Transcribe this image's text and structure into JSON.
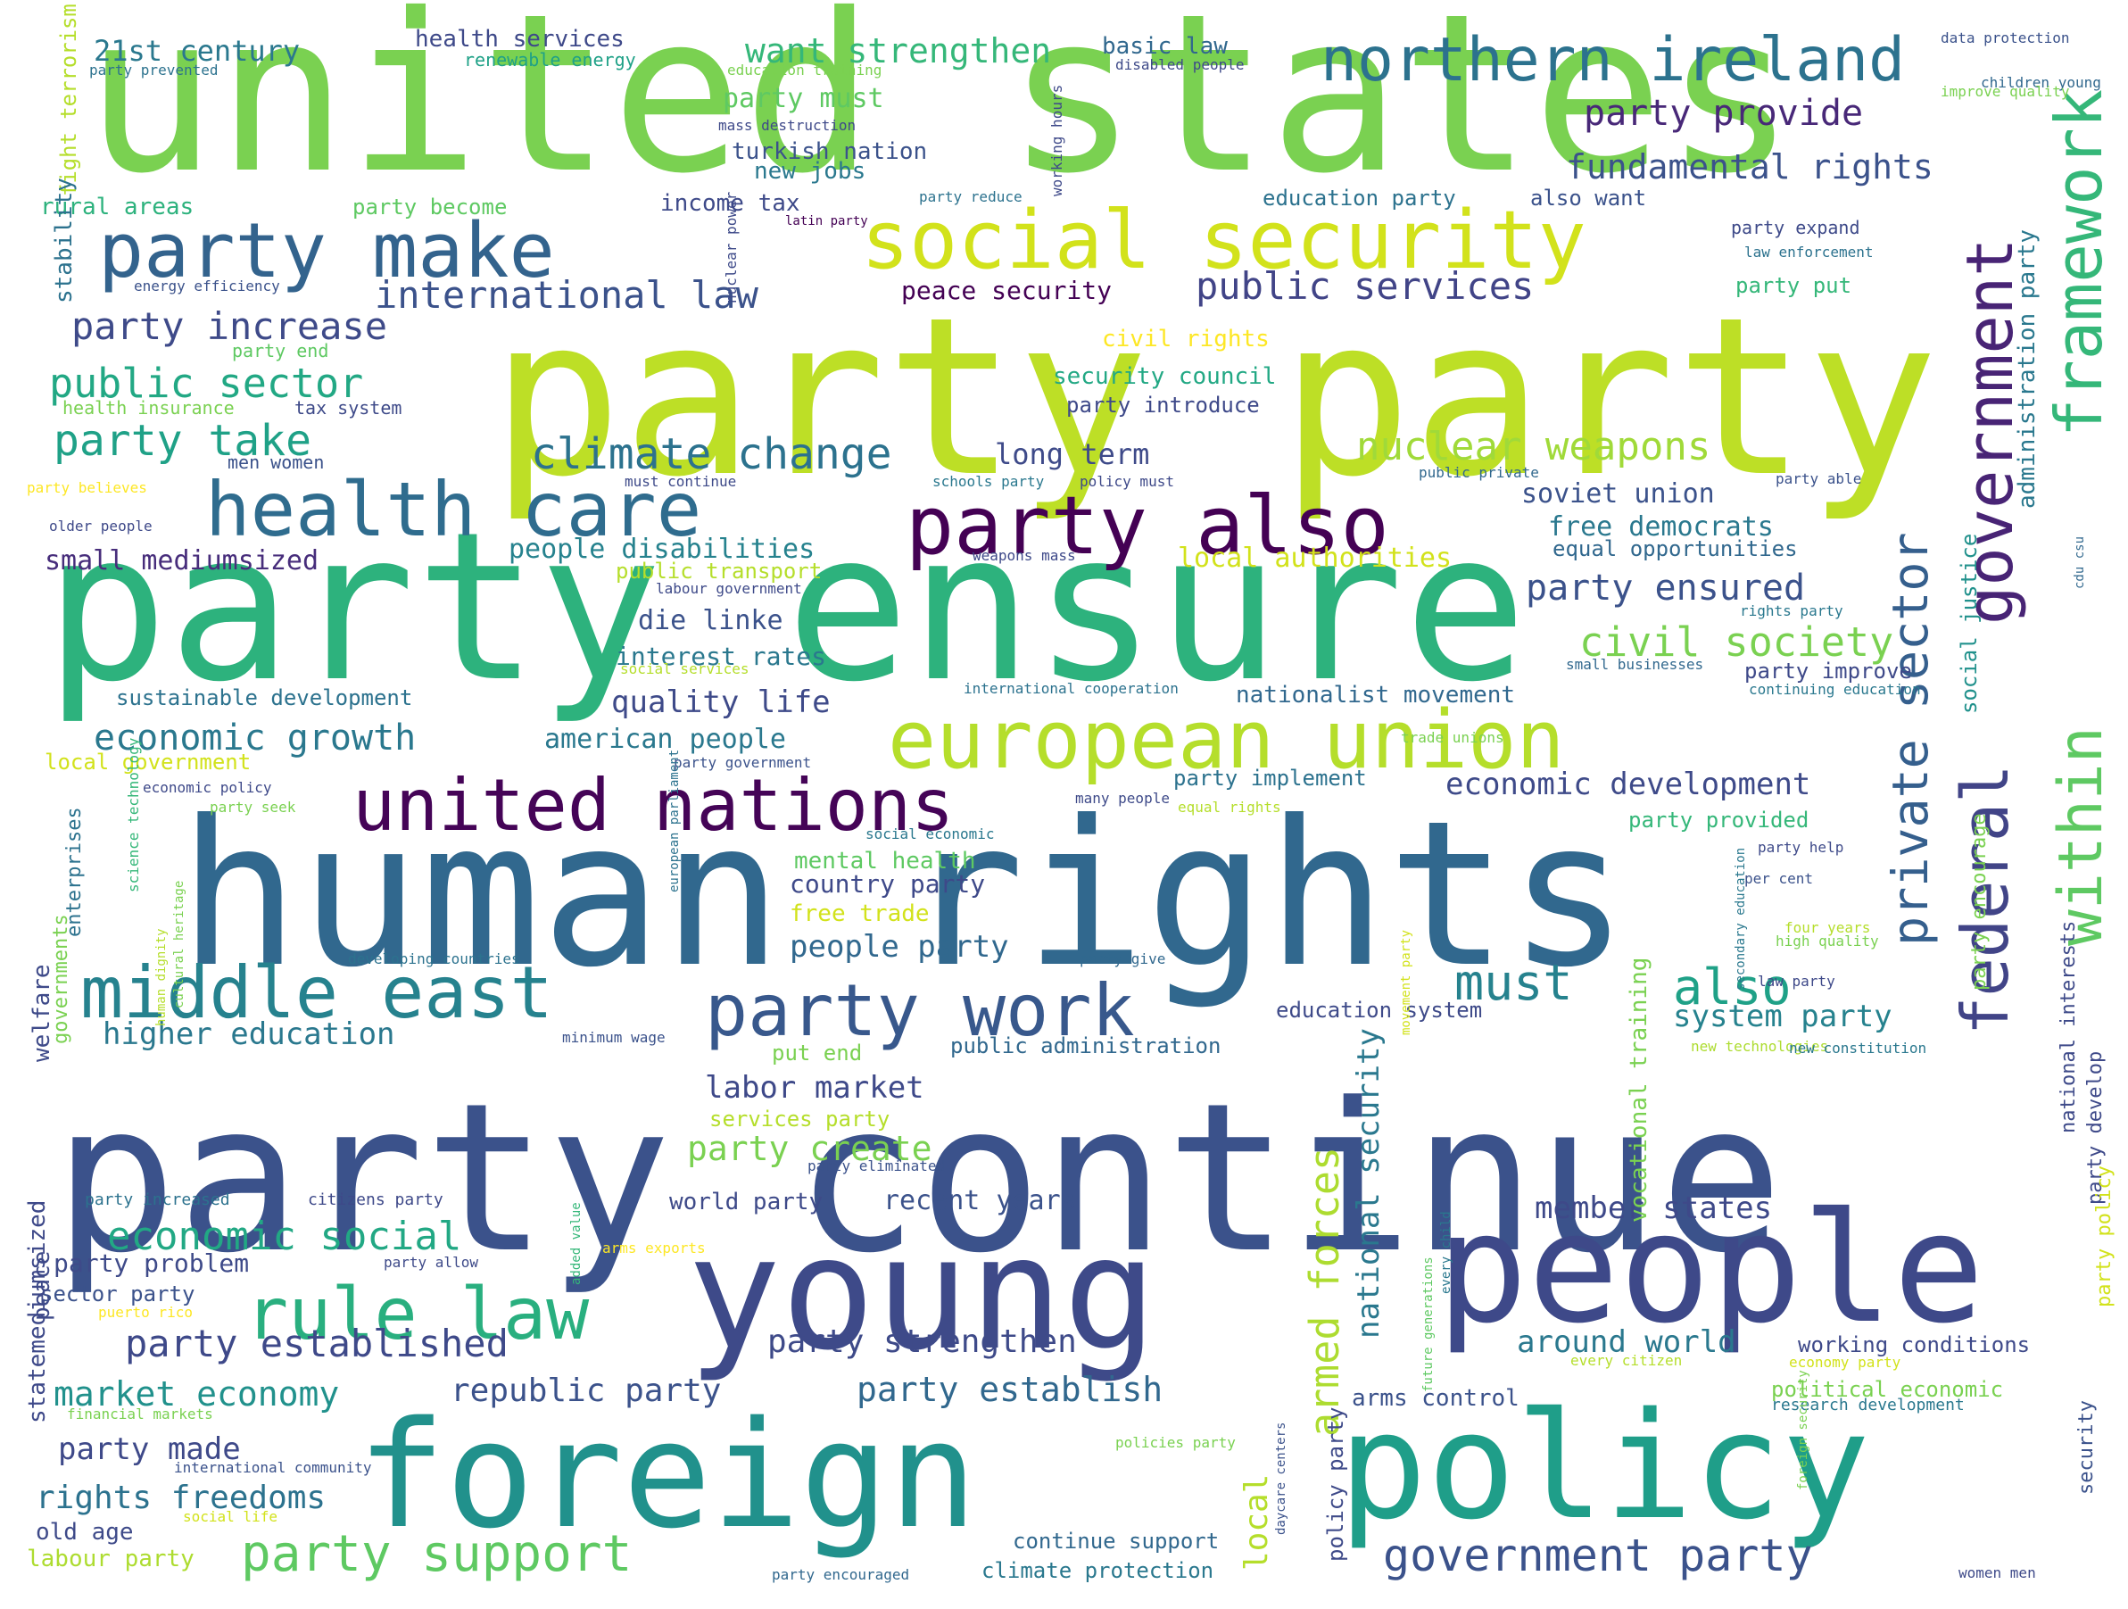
{
  "words": [
    {
      "text": "united states",
      "color": "#7ad151",
      "weight": 10
    },
    {
      "text": "party party",
      "color": "#bddf26",
      "weight": 10
    },
    {
      "text": "party ensure",
      "color": "#2db27d",
      "weight": 10
    },
    {
      "text": "human rights",
      "color": "#31688e",
      "weight": 10
    },
    {
      "text": "party continue",
      "color": "#3b528b",
      "weight": 10
    },
    {
      "text": "young",
      "color": "#3e4a89",
      "weight": 8
    },
    {
      "text": "people",
      "color": "#3e4989",
      "weight": 8
    },
    {
      "text": "foreign",
      "color": "#21918c",
      "weight": 8
    },
    {
      "text": "policy",
      "color": "#1f9e89",
      "weight": 8
    },
    {
      "text": "party make",
      "color": "#33638d",
      "weight": 6
    },
    {
      "text": "social security",
      "color": "#d2e21b",
      "weight": 6
    },
    {
      "text": "northern ireland",
      "color": "#2c728e",
      "weight": 5
    },
    {
      "text": "framework",
      "color": "#35b779",
      "weight": 5
    },
    {
      "text": "government",
      "color": "#482475",
      "weight": 5
    },
    {
      "text": "health care",
      "color": "#2f6c8e",
      "weight": 6
    },
    {
      "text": "party also",
      "color": "#440154",
      "weight": 6
    },
    {
      "text": "european union",
      "color": "#b5de2b",
      "weight": 6
    },
    {
      "text": "united nations",
      "color": "#450457",
      "weight": 6
    },
    {
      "text": "within",
      "color": "#5ec962",
      "weight": 5
    },
    {
      "text": "federal",
      "color": "#414487",
      "weight": 5
    },
    {
      "text": "private sector",
      "color": "#355f8d",
      "weight": 4
    },
    {
      "text": "middle east",
      "color": "#26828e",
      "weight": 5
    },
    {
      "text": "party work",
      "color": "#38588c",
      "weight": 5
    },
    {
      "text": "rule law",
      "color": "#29af7f",
      "weight": 5
    },
    {
      "text": "party support",
      "color": "#5ec962",
      "weight": 4
    },
    {
      "text": "government party",
      "color": "#3b528b",
      "weight": 4
    },
    {
      "text": "armed forces",
      "color": "#addc30",
      "weight": 4
    },
    {
      "text": "party increase",
      "color": "#3e4a89",
      "weight": 3
    },
    {
      "text": "public sector",
      "color": "#22a884",
      "weight": 3
    },
    {
      "text": "party take",
      "color": "#1fa187",
      "weight": 3
    },
    {
      "text": "climate change",
      "color": "#2c728e",
      "weight": 3
    },
    {
      "text": "international law",
      "color": "#3b528b",
      "weight": 3
    },
    {
      "text": "public services",
      "color": "#414487",
      "weight": 3
    },
    {
      "text": "nuclear weapons",
      "color": "#a0da39",
      "weight": 3
    },
    {
      "text": "civil society",
      "color": "#7ad151",
      "weight": 3
    },
    {
      "text": "party ensured",
      "color": "#3b528b",
      "weight": 3
    },
    {
      "text": "economic growth",
      "color": "#2a788e",
      "weight": 3
    },
    {
      "text": "economic social",
      "color": "#22a884",
      "weight": 3
    },
    {
      "text": "party established",
      "color": "#3e4989",
      "weight": 3
    },
    {
      "text": "must",
      "color": "#26828e",
      "weight": 4
    },
    {
      "text": "also",
      "color": "#1fa187",
      "weight": 4
    },
    {
      "text": "party provide",
      "color": "#482878",
      "weight": 3
    },
    {
      "text": "fundamental rights",
      "color": "#3b528b",
      "weight": 2
    },
    {
      "text": "want strengthen",
      "color": "#35b779",
      "weight": 2
    },
    {
      "text": "21st century",
      "color": "#2a788e",
      "weight": 2
    },
    {
      "text": "health services",
      "color": "#3e4989",
      "weight": 1
    },
    {
      "text": "basic law",
      "color": "#31688e",
      "weight": 1
    },
    {
      "text": "party must",
      "color": "#5ec962",
      "weight": 2
    },
    {
      "text": "turkish nation",
      "color": "#3b528b",
      "weight": 2
    },
    {
      "text": "new jobs",
      "color": "#2a788e",
      "weight": 2
    },
    {
      "text": "income tax",
      "color": "#3e4a89",
      "weight": 2
    },
    {
      "text": "education party",
      "color": "#2c728e",
      "weight": 1
    },
    {
      "text": "also want",
      "color": "#3b528b",
      "weight": 1
    },
    {
      "text": "rural areas",
      "color": "#2db27d",
      "weight": 1
    },
    {
      "text": "party become",
      "color": "#5ec962",
      "weight": 1
    },
    {
      "text": "peace security",
      "color": "#440154",
      "weight": 2
    },
    {
      "text": "long term",
      "color": "#3e4a89",
      "weight": 2
    },
    {
      "text": "security council",
      "color": "#22a884",
      "weight": 1
    },
    {
      "text": "party introduce",
      "color": "#3e4989",
      "weight": 1
    },
    {
      "text": "civil rights",
      "color": "#fde725",
      "weight": 1
    },
    {
      "text": "soviet union",
      "color": "#3b528b",
      "weight": 2
    },
    {
      "text": "free democrats",
      "color": "#2a788e",
      "weight": 2
    },
    {
      "text": "equal opportunities",
      "color": "#31688e",
      "weight": 1
    },
    {
      "text": "local authorities",
      "color": "#d2e21b",
      "weight": 2
    },
    {
      "text": "people disabilities",
      "color": "#26828e",
      "weight": 2
    },
    {
      "text": "small mediumsized",
      "color": "#472d7b",
      "weight": 2
    },
    {
      "text": "public transport",
      "color": "#b5de2b",
      "weight": 1
    },
    {
      "text": "die linke",
      "color": "#3b528b",
      "weight": 2
    },
    {
      "text": "interest rates",
      "color": "#2a788e",
      "weight": 2
    },
    {
      "text": "quality life",
      "color": "#3e4a89",
      "weight": 2
    },
    {
      "text": "sustainable development",
      "color": "#2c728e",
      "weight": 1
    },
    {
      "text": "nationalist movement",
      "color": "#31688e",
      "weight": 1
    },
    {
      "text": "party improve",
      "color": "#3e4989",
      "weight": 1
    },
    {
      "text": "american people",
      "color": "#2a788e",
      "weight": 2
    },
    {
      "text": "economic development",
      "color": "#3e4a89",
      "weight": 2
    },
    {
      "text": "local government",
      "color": "#d2e21b",
      "weight": 1
    },
    {
      "text": "party implement",
      "color": "#2c728e",
      "weight": 1
    },
    {
      "text": "party provided",
      "color": "#35b779",
      "weight": 1
    },
    {
      "text": "mental health",
      "color": "#5ec962",
      "weight": 2
    },
    {
      "text": "country party",
      "color": "#3e4989",
      "weight": 2
    },
    {
      "text": "free trade",
      "color": "#d2e21b",
      "weight": 2
    },
    {
      "text": "people party",
      "color": "#31688e",
      "weight": 2
    },
    {
      "text": "higher education",
      "color": "#2a788e",
      "weight": 2
    },
    {
      "text": "education system",
      "color": "#3e4a89",
      "weight": 1
    },
    {
      "text": "system party",
      "color": "#26828e",
      "weight": 2
    },
    {
      "text": "put end",
      "color": "#7ad151",
      "weight": 1
    },
    {
      "text": "public administration",
      "color": "#31688e",
      "weight": 1
    },
    {
      "text": "labor market",
      "color": "#3e4989",
      "weight": 2
    },
    {
      "text": "services party",
      "color": "#b5de2b",
      "weight": 1
    },
    {
      "text": "party create",
      "color": "#7ad151",
      "weight": 2
    },
    {
      "text": "world party",
      "color": "#3e4a89",
      "weight": 1
    },
    {
      "text": "recent years",
      "color": "#3b528b",
      "weight": 2
    },
    {
      "text": "member states",
      "color": "#3e4989",
      "weight": 2
    },
    {
      "text": "party strengthen",
      "color": "#3e4a89",
      "weight": 2
    },
    {
      "text": "around world",
      "color": "#2a788e",
      "weight": 2
    },
    {
      "text": "working conditions",
      "color": "#3e4989",
      "weight": 1
    },
    {
      "text": "market economy",
      "color": "#21918c",
      "weight": 2
    },
    {
      "text": "republic party",
      "color": "#3b528b",
      "weight": 2
    },
    {
      "text": "party establish",
      "color": "#31688e",
      "weight": 2
    },
    {
      "text": "arms control",
      "color": "#3b528b",
      "weight": 1
    },
    {
      "text": "political economic",
      "color": "#7ad151",
      "weight": 1
    },
    {
      "text": "party made",
      "color": "#3e4989",
      "weight": 2
    },
    {
      "text": "rights freedoms",
      "color": "#2c728e",
      "weight": 2
    },
    {
      "text": "old age",
      "color": "#3e4a89",
      "weight": 1
    },
    {
      "text": "labour party",
      "color": "#addc30",
      "weight": 1
    },
    {
      "text": "continue support",
      "color": "#31688e",
      "weight": 1
    },
    {
      "text": "climate protection",
      "color": "#2a788e",
      "weight": 1
    },
    {
      "text": "party problem",
      "color": "#3e4a89",
      "weight": 1
    },
    {
      "text": "sector party",
      "color": "#3b528b",
      "weight": 1
    },
    {
      "text": "renewable energy",
      "color": "#1fa187",
      "weight": 1
    },
    {
      "text": "party prevented",
      "color": "#2c728e",
      "weight": 0
    },
    {
      "text": "education training",
      "color": "#7ad151",
      "weight": 0
    },
    {
      "text": "mass destruction",
      "color": "#3e4989",
      "weight": 0
    },
    {
      "text": "disabled people",
      "color": "#3e4a89",
      "weight": 0
    },
    {
      "text": "data protection",
      "color": "#3b528b",
      "weight": 0
    },
    {
      "text": "children young",
      "color": "#31688e",
      "weight": 0
    },
    {
      "text": "improve quality",
      "color": "#7ad151",
      "weight": 0
    },
    {
      "text": "party expand",
      "color": "#3e4a89",
      "weight": 0
    },
    {
      "text": "law enforcement",
      "color": "#2c728e",
      "weight": 0
    },
    {
      "text": "party put",
      "color": "#35b779",
      "weight": 0
    },
    {
      "text": "party reduce",
      "color": "#2c728e",
      "weight": 0
    },
    {
      "text": "latin party",
      "color": "#440154",
      "weight": 0
    },
    {
      "text": "energy efficiency",
      "color": "#3b528b",
      "weight": 0
    },
    {
      "text": "party end",
      "color": "#5ec962",
      "weight": 0
    },
    {
      "text": "health insurance",
      "color": "#7ad151",
      "weight": 0
    },
    {
      "text": "tax system",
      "color": "#3e4a89",
      "weight": 0
    },
    {
      "text": "men women",
      "color": "#3b528b",
      "weight": 0
    },
    {
      "text": "party believes",
      "color": "#fde725",
      "weight": 0
    },
    {
      "text": "older people",
      "color": "#3e4989",
      "weight": 0
    },
    {
      "text": "must continue",
      "color": "#3e4a89",
      "weight": 0
    },
    {
      "text": "schools party",
      "color": "#2a788e",
      "weight": 0
    },
    {
      "text": "policy must",
      "color": "#3e4989",
      "weight": 0
    },
    {
      "text": "public private",
      "color": "#31688e",
      "weight": 0
    },
    {
      "text": "party able",
      "color": "#3b528b",
      "weight": 0
    },
    {
      "text": "weapons mass",
      "color": "#3e4989",
      "weight": 0
    },
    {
      "text": "labour government",
      "color": "#3e4a89",
      "weight": 0
    },
    {
      "text": "rights party",
      "color": "#2a788e",
      "weight": 0
    },
    {
      "text": "social services",
      "color": "#b5de2b",
      "weight": 0
    },
    {
      "text": "international cooperation",
      "color": "#2c728e",
      "weight": 0
    },
    {
      "text": "small businesses",
      "color": "#31688e",
      "weight": 0
    },
    {
      "text": "continuing education",
      "color": "#2a788e",
      "weight": 0
    },
    {
      "text": "party government",
      "color": "#3b528b",
      "weight": 0
    },
    {
      "text": "trade unions",
      "color": "#7ad151",
      "weight": 0
    },
    {
      "text": "economic policy",
      "color": "#3e4989",
      "weight": 0
    },
    {
      "text": "many people",
      "color": "#3e4a89",
      "weight": 0
    },
    {
      "text": "social economic",
      "color": "#2a788e",
      "weight": 0
    },
    {
      "text": "party seek",
      "color": "#7ad151",
      "weight": 0
    },
    {
      "text": "equal rights",
      "color": "#b5de2b",
      "weight": 0
    },
    {
      "text": "party help",
      "color": "#3e4a89",
      "weight": 0
    },
    {
      "text": "per cent",
      "color": "#3b528b",
      "weight": 0
    },
    {
      "text": "four years",
      "color": "#b5de2b",
      "weight": 0
    },
    {
      "text": "high quality",
      "color": "#7ad151",
      "weight": 0
    },
    {
      "text": "party give",
      "color": "#31688e",
      "weight": 0
    },
    {
      "text": "law party",
      "color": "#3e4989",
      "weight": 0
    },
    {
      "text": "developing countries",
      "color": "#2c728e",
      "weight": 0
    },
    {
      "text": "minimum wage",
      "color": "#3b528b",
      "weight": 0
    },
    {
      "text": "new technologies",
      "color": "#addc30",
      "weight": 0
    },
    {
      "text": "new constitution",
      "color": "#2a788e",
      "weight": 0
    },
    {
      "text": "party eliminated",
      "color": "#3b528b",
      "weight": 0
    },
    {
      "text": "party increased",
      "color": "#2c728e",
      "weight": 0
    },
    {
      "text": "citizens party",
      "color": "#3e4989",
      "weight": 0
    },
    {
      "text": "arms exports",
      "color": "#fde725",
      "weight": 0
    },
    {
      "text": "party allow",
      "color": "#3e4a89",
      "weight": 0
    },
    {
      "text": "puerto rico",
      "color": "#fde725",
      "weight": 0
    },
    {
      "text": "every citizen",
      "color": "#b5de2b",
      "weight": 0
    },
    {
      "text": "economy party",
      "color": "#d2e21b",
      "weight": 0
    },
    {
      "text": "research development",
      "color": "#2a788e",
      "weight": 0
    },
    {
      "text": "financial markets",
      "color": "#7ad151",
      "weight": 0
    },
    {
      "text": "international community",
      "color": "#3b528b",
      "weight": 0
    },
    {
      "text": "policies party",
      "color": "#7ad151",
      "weight": 0
    },
    {
      "text": "social life",
      "color": "#d2e21b",
      "weight": 0
    },
    {
      "text": "party encouraged",
      "color": "#31688e",
      "weight": 0
    },
    {
      "text": "women men",
      "color": "#3e4a89",
      "weight": 0
    },
    {
      "text": "fight terrorism",
      "color": "#b5de2b",
      "weight": 0
    },
    {
      "text": "stability",
      "color": "#2c728e",
      "weight": 1
    },
    {
      "text": "peace",
      "color": "#3e4a89",
      "weight": 1
    },
    {
      "text": "statemediumsized",
      "color": "#3e4989",
      "weight": 1
    },
    {
      "text": "welfare",
      "color": "#3e4a89",
      "weight": 1
    },
    {
      "text": "enterprises",
      "color": "#2c728e",
      "weight": 1
    },
    {
      "text": "governments",
      "color": "#7ad151",
      "weight": 1
    },
    {
      "text": "local",
      "color": "#b5de2b",
      "weight": 1
    },
    {
      "text": "national security",
      "color": "#2a788e",
      "weight": 2
    },
    {
      "text": "policy party",
      "color": "#3e4a89",
      "weight": 2
    },
    {
      "text": "vocational training",
      "color": "#7ad151",
      "weight": 1
    },
    {
      "text": "social justice",
      "color": "#21918c",
      "weight": 1
    },
    {
      "text": "administration party",
      "color": "#2a788e",
      "weight": 1
    },
    {
      "text": "party encourage",
      "color": "#7ad151",
      "weight": 1
    },
    {
      "text": "national interests",
      "color": "#3e4a89",
      "weight": 1
    },
    {
      "text": "party develop",
      "color": "#3e4989",
      "weight": 1
    },
    {
      "text": "party policy",
      "color": "#d2e21b",
      "weight": 1
    },
    {
      "text": "security",
      "color": "#3b528b",
      "weight": 1
    },
    {
      "text": "working hours",
      "color": "#3e4989",
      "weight": 1
    },
    {
      "text": "nuclear power",
      "color": "#3e4a89",
      "weight": 0
    },
    {
      "text": "science technology",
      "color": "#35b779",
      "weight": 0
    },
    {
      "text": "human dignity",
      "color": "#b5de2b",
      "weight": 0
    },
    {
      "text": "cultural heritage",
      "color": "#7ad151",
      "weight": 0
    },
    {
      "text": "european parliament",
      "color": "#2c728e",
      "weight": 0
    },
    {
      "text": "added value",
      "color": "#35b779",
      "weight": 0
    },
    {
      "text": "movement party",
      "color": "#d2e21b",
      "weight": 0
    },
    {
      "text": "secondary education",
      "color": "#2a788e",
      "weight": 0
    },
    {
      "text": "daycare centers",
      "color": "#3b528b",
      "weight": 0
    },
    {
      "text": "future generations",
      "color": "#5ec962",
      "weight": 0
    },
    {
      "text": "every child",
      "color": "#2a788e",
      "weight": 0
    },
    {
      "text": "foreign security",
      "color": "#7ad151",
      "weight": 0
    },
    {
      "text": "cdu csu",
      "color": "#31688e",
      "weight": 0
    },
    {
      "text": "party",
      "color": "#3e4a89",
      "weight": 1
    }
  ]
}
